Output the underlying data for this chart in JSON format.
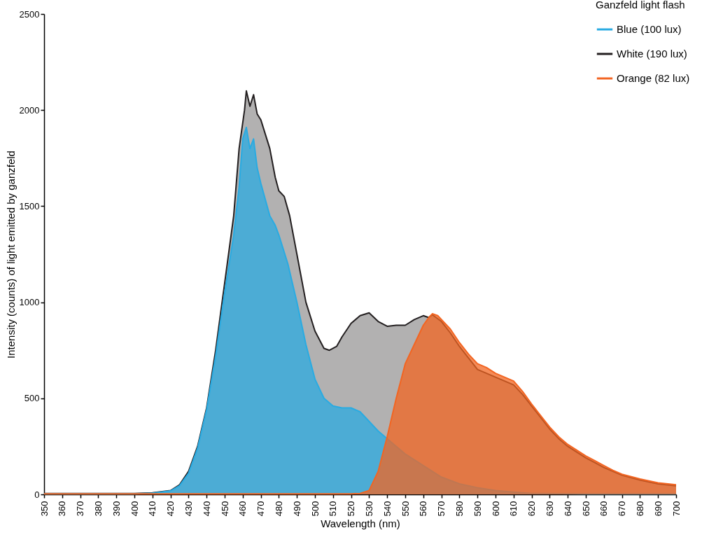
{
  "chart_data": {
    "type": "area",
    "xlabel": "Wavelength (nm)",
    "ylabel": "Intensity (counts) of light emitted by ganzfeld",
    "legend_title": "Ganzfeld light flash",
    "legend": "top right",
    "grid": false,
    "xlim": [
      350,
      700
    ],
    "xticks": [
      350,
      360,
      370,
      380,
      390,
      400,
      410,
      420,
      430,
      440,
      450,
      460,
      470,
      480,
      490,
      500,
      510,
      520,
      530,
      540,
      550,
      560,
      570,
      580,
      590,
      600,
      610,
      620,
      630,
      640,
      650,
      660,
      670,
      680,
      690,
      700
    ],
    "ylim": [
      0,
      2500
    ],
    "yticks": [
      0,
      500,
      1000,
      1500,
      2000,
      2500
    ],
    "series": [
      {
        "name": "Blue (100 lux)",
        "color": "#29abe2",
        "x": [
          350,
          400,
          410,
          420,
          425,
          430,
          435,
          440,
          445,
          450,
          455,
          458,
          460,
          462,
          464,
          466,
          468,
          470,
          475,
          478,
          480,
          485,
          490,
          495,
          500,
          505,
          510,
          515,
          520,
          525,
          530,
          535,
          540,
          545,
          550,
          555,
          560,
          565,
          570,
          580,
          590,
          600,
          610,
          620,
          650,
          700
        ],
        "values": [
          3,
          3,
          6,
          18,
          45,
          110,
          240,
          440,
          720,
          1050,
          1350,
          1600,
          1850,
          1910,
          1800,
          1850,
          1700,
          1620,
          1450,
          1400,
          1350,
          1200,
          1000,
          780,
          600,
          500,
          460,
          450,
          450,
          430,
          380,
          330,
          290,
          250,
          210,
          180,
          150,
          120,
          90,
          55,
          35,
          20,
          12,
          5,
          3,
          3
        ]
      },
      {
        "name": "White (190 lux)",
        "color": "#231f20",
        "x": [
          350,
          400,
          410,
          420,
          425,
          430,
          435,
          440,
          445,
          450,
          455,
          458,
          461,
          462,
          464,
          466,
          468,
          470,
          475,
          478,
          480,
          483,
          486,
          490,
          495,
          500,
          505,
          508,
          512,
          515,
          520,
          525,
          530,
          535,
          540,
          545,
          550,
          555,
          560,
          563,
          565,
          570,
          575,
          580,
          585,
          590,
          595,
          600,
          605,
          610,
          615,
          620,
          625,
          630,
          635,
          640,
          645,
          650,
          655,
          660,
          665,
          670,
          680,
          690,
          700
        ],
        "values": [
          5,
          5,
          8,
          20,
          50,
          120,
          250,
          450,
          750,
          1100,
          1450,
          1800,
          2000,
          2100,
          2020,
          2080,
          1980,
          1950,
          1800,
          1650,
          1580,
          1550,
          1450,
          1250,
          1000,
          850,
          760,
          750,
          770,
          820,
          890,
          930,
          945,
          900,
          875,
          880,
          880,
          910,
          930,
          920,
          935,
          900,
          840,
          770,
          710,
          650,
          630,
          610,
          590,
          570,
          520,
          460,
          400,
          340,
          290,
          250,
          220,
          190,
          165,
          140,
          120,
          100,
          75,
          55,
          45
        ]
      },
      {
        "name": "Orange (82 lux)",
        "color": "#f26522",
        "x": [
          350,
          520,
          525,
          530,
          535,
          540,
          545,
          550,
          555,
          560,
          563,
          565,
          568,
          570,
          575,
          580,
          585,
          590,
          595,
          600,
          605,
          610,
          615,
          620,
          625,
          630,
          635,
          640,
          645,
          650,
          655,
          660,
          665,
          670,
          680,
          690,
          700
        ],
        "values": [
          3,
          3,
          5,
          20,
          120,
          300,
          500,
          680,
          780,
          880,
          920,
          940,
          930,
          910,
          860,
          790,
          730,
          680,
          660,
          630,
          610,
          590,
          535,
          470,
          410,
          350,
          300,
          260,
          230,
          200,
          175,
          150,
          125,
          105,
          80,
          60,
          50
        ]
      }
    ]
  }
}
